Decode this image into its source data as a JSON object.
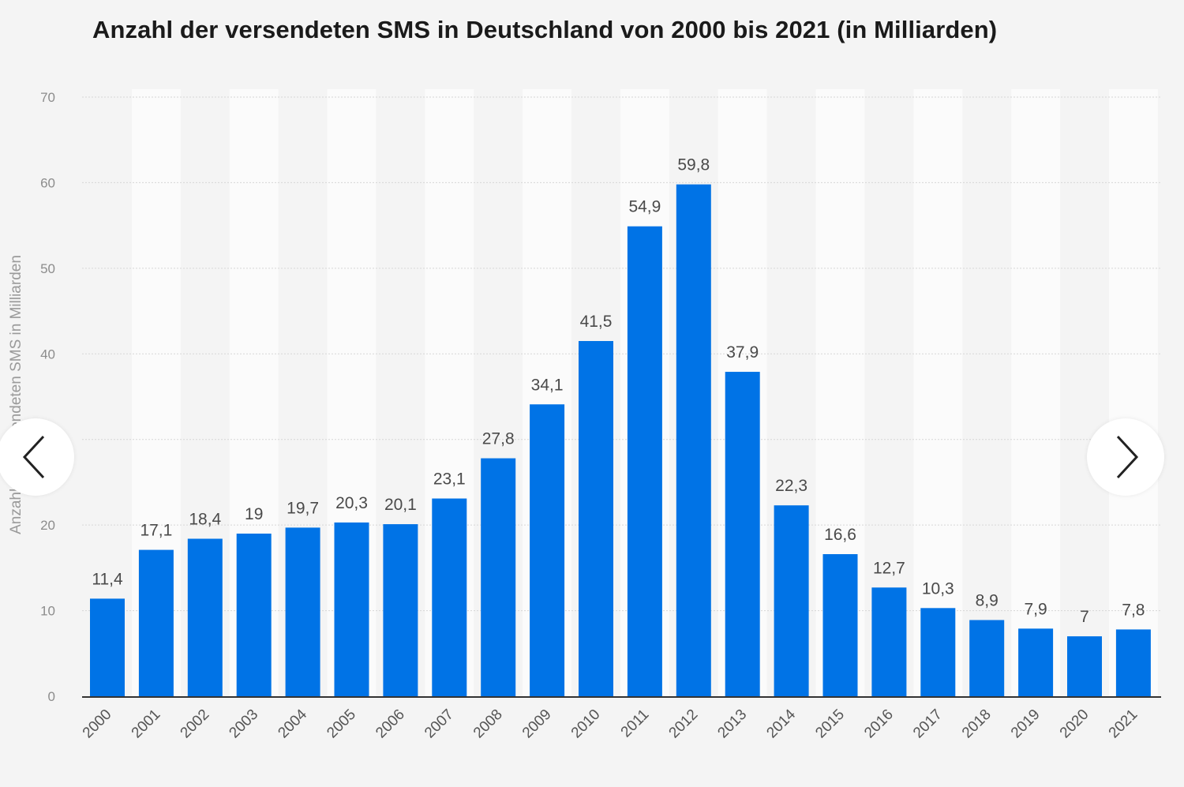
{
  "chart_data": {
    "type": "bar",
    "title": "Anzahl der versendeten SMS in Deutschland von 2000 bis 2021 (in Milliarden)",
    "ylabel": "Anzahl der versendeten SMS in Milliarden",
    "xlabel": "",
    "ylim": [
      0,
      70
    ],
    "yticks": [
      0,
      10,
      20,
      30,
      40,
      50,
      60,
      70
    ],
    "ytick_labels": [
      "0",
      "10",
      "20",
      "",
      "40",
      "50",
      "60",
      "70"
    ],
    "bar_color": "#0073e6",
    "categories": [
      "2000",
      "2001",
      "2002",
      "2003",
      "2004",
      "2005",
      "2006",
      "2007",
      "2008",
      "2009",
      "2010",
      "2011",
      "2012",
      "2013",
      "2014",
      "2015",
      "2016",
      "2017",
      "2018",
      "2019",
      "2020",
      "2021"
    ],
    "values": [
      11.4,
      17.1,
      18.4,
      19,
      19.7,
      20.3,
      20.1,
      23.1,
      27.8,
      34.1,
      41.5,
      54.9,
      59.8,
      37.9,
      22.3,
      16.6,
      12.7,
      10.3,
      8.9,
      7.9,
      7,
      7.8
    ],
    "value_labels": [
      "11,4",
      "17,1",
      "18,4",
      "19",
      "19,7",
      "20,3",
      "20,1",
      "23,1",
      "27,8",
      "34,1",
      "41,5",
      "54,9",
      "59,8",
      "37,9",
      "22,3",
      "16,6",
      "12,7",
      "10,3",
      "8,9",
      "7,9",
      "7",
      "7,8"
    ]
  },
  "nav": {
    "prev_icon": "chevron-left-icon",
    "next_icon": "chevron-right-icon"
  }
}
